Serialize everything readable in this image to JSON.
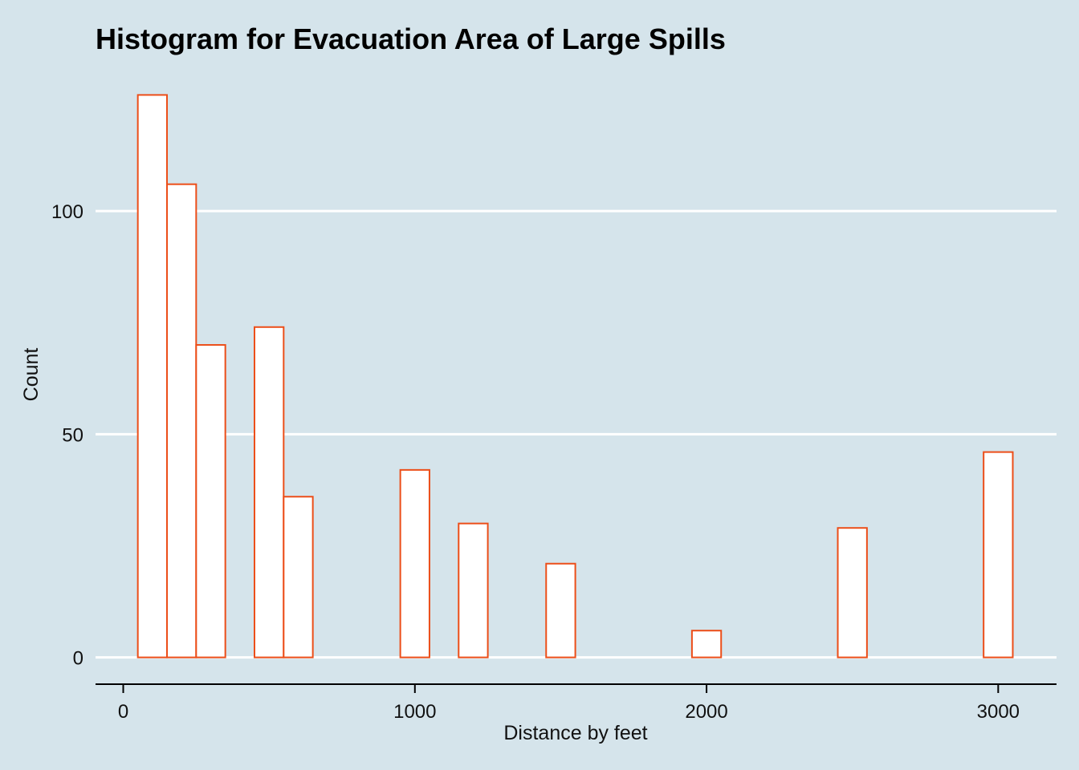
{
  "chart_data": {
    "type": "bar",
    "title": "Histogram for Evacuation Area of Large Spills",
    "xlabel": "Distance by feet",
    "ylabel": "Count",
    "bin_width": 100,
    "bins": [
      {
        "x0": 50,
        "x1": 150,
        "count": 126
      },
      {
        "x0": 150,
        "x1": 250,
        "count": 106
      },
      {
        "x0": 250,
        "x1": 350,
        "count": 70
      },
      {
        "x0": 350,
        "x1": 450,
        "count": 0
      },
      {
        "x0": 450,
        "x1": 550,
        "count": 74
      },
      {
        "x0": 550,
        "x1": 650,
        "count": 36
      },
      {
        "x0": 650,
        "x1": 750,
        "count": 0
      },
      {
        "x0": 750,
        "x1": 850,
        "count": 0
      },
      {
        "x0": 850,
        "x1": 950,
        "count": 0
      },
      {
        "x0": 950,
        "x1": 1050,
        "count": 42
      },
      {
        "x0": 1050,
        "x1": 1150,
        "count": 0
      },
      {
        "x0": 1150,
        "x1": 1250,
        "count": 30
      },
      {
        "x0": 1250,
        "x1": 1350,
        "count": 0
      },
      {
        "x0": 1350,
        "x1": 1450,
        "count": 0
      },
      {
        "x0": 1450,
        "x1": 1550,
        "count": 21
      },
      {
        "x0": 1550,
        "x1": 1650,
        "count": 0
      },
      {
        "x0": 1650,
        "x1": 1750,
        "count": 0
      },
      {
        "x0": 1750,
        "x1": 1850,
        "count": 0
      },
      {
        "x0": 1850,
        "x1": 1950,
        "count": 0
      },
      {
        "x0": 1950,
        "x1": 2050,
        "count": 6
      },
      {
        "x0": 2050,
        "x1": 2150,
        "count": 0
      },
      {
        "x0": 2150,
        "x1": 2250,
        "count": 0
      },
      {
        "x0": 2250,
        "x1": 2350,
        "count": 0
      },
      {
        "x0": 2350,
        "x1": 2450,
        "count": 0
      },
      {
        "x0": 2450,
        "x1": 2550,
        "count": 29
      },
      {
        "x0": 2550,
        "x1": 2650,
        "count": 0
      },
      {
        "x0": 2650,
        "x1": 2750,
        "count": 0
      },
      {
        "x0": 2750,
        "x1": 2850,
        "count": 0
      },
      {
        "x0": 2850,
        "x1": 2950,
        "count": 0
      },
      {
        "x0": 2950,
        "x1": 3050,
        "count": 46
      }
    ],
    "xticks": [
      0,
      1000,
      2000,
      3000
    ],
    "yticks": [
      0,
      50,
      100
    ],
    "xlim": [
      -95,
      3200
    ],
    "ylim": [
      -6,
      132
    ],
    "grid": "horizontal",
    "colors": {
      "background": "#d5e4eb",
      "bar_fill": "#ffffff",
      "bar_outline": "#ec4e19",
      "grid": "#ffffff",
      "axis": "#000000"
    }
  }
}
